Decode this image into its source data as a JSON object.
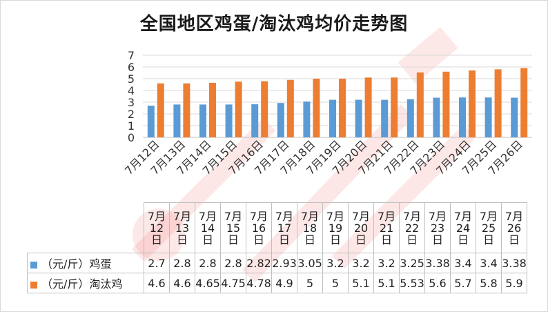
{
  "chart_data": {
    "type": "bar",
    "title": "全国地区鸡蛋/淘汰鸡均价走势图",
    "categories": [
      "7月12日",
      "7月13日",
      "7月14日",
      "7月15日",
      "7月16日",
      "7月17日",
      "7月18日",
      "7月19日",
      "7月20日",
      "7月21日",
      "7月22日",
      "7月23日",
      "7月24日",
      "7月25日",
      "7月26日"
    ],
    "series": [
      {
        "name": "（元/斤）鸡蛋",
        "color": "#5b9bd5",
        "values": [
          2.7,
          2.8,
          2.8,
          2.8,
          2.82,
          2.93,
          3.05,
          3.2,
          3.2,
          3.2,
          3.25,
          3.38,
          3.4,
          3.4,
          3.38
        ]
      },
      {
        "name": "（元/斤）淘汰鸡",
        "color": "#ed7d31",
        "values": [
          4.6,
          4.6,
          4.65,
          4.75,
          4.78,
          4.9,
          5,
          5,
          5.1,
          5.1,
          5.53,
          5.6,
          5.7,
          5.8,
          5.9
        ]
      }
    ],
    "value_labels": {
      "eggs": [
        "2.7",
        "2.8",
        "2.8",
        "2.8",
        "2.82",
        "2.93",
        "3.05",
        "3.2",
        "3.2",
        "3.2",
        "3.25",
        "3.38",
        "3.4",
        "3.4",
        "3.38"
      ],
      "hens": [
        "4.6",
        "4.6",
        "4.65",
        "4.75",
        "4.78",
        "4.9",
        "5",
        "5",
        "5.1",
        "5.1",
        "5.53",
        "5.6",
        "5.7",
        "5.8",
        "5.9"
      ]
    },
    "table_headers": [
      "7月12日",
      "7月13日",
      "7月14日",
      "7月15日",
      "7月16日",
      "7月17日",
      "7月18日",
      "7月19日",
      "7月20日",
      "7月21日",
      "7月22日",
      "7月23日",
      "7月24日",
      "7月25日",
      "7月26日"
    ],
    "ylim": [
      0,
      7
    ],
    "yticks": [
      "0",
      "1",
      "2",
      "3",
      "4",
      "5",
      "6",
      "7"
    ],
    "grid": true,
    "legend": "data-table-left"
  }
}
